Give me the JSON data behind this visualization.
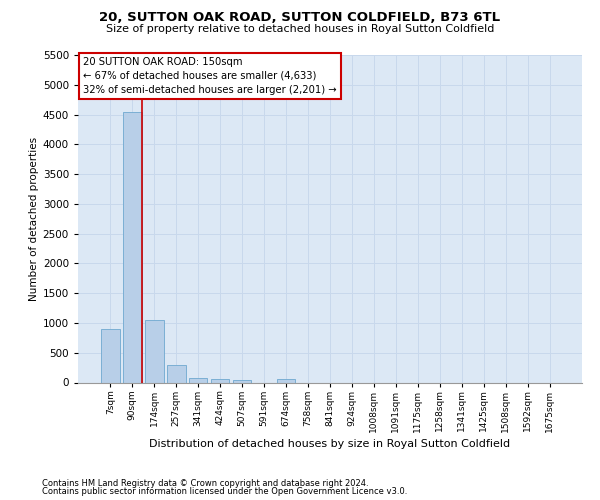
{
  "title": "20, SUTTON OAK ROAD, SUTTON COLDFIELD, B73 6TL",
  "subtitle": "Size of property relative to detached houses in Royal Sutton Coldfield",
  "xlabel": "Distribution of detached houses by size in Royal Sutton Coldfield",
  "ylabel": "Number of detached properties",
  "footnote1": "Contains HM Land Registry data © Crown copyright and database right 2024.",
  "footnote2": "Contains public sector information licensed under the Open Government Licence v3.0.",
  "bar_color": "#b8cfe8",
  "bar_edge_color": "#6fa8d0",
  "grid_color": "#c8d8ec",
  "background_color": "#dce8f5",
  "annotation_line1": "20 SUTTON OAK ROAD: 150sqm",
  "annotation_line2": "← 67% of detached houses are smaller (4,633)",
  "annotation_line3": "32% of semi-detached houses are larger (2,201) →",
  "vline_color": "#cc0000",
  "annotation_box_edgecolor": "#cc0000",
  "categories": [
    "7sqm",
    "90sqm",
    "174sqm",
    "257sqm",
    "341sqm",
    "424sqm",
    "507sqm",
    "591sqm",
    "674sqm",
    "758sqm",
    "841sqm",
    "924sqm",
    "1008sqm",
    "1091sqm",
    "1175sqm",
    "1258sqm",
    "1341sqm",
    "1425sqm",
    "1508sqm",
    "1592sqm",
    "1675sqm"
  ],
  "values": [
    900,
    4550,
    1050,
    300,
    80,
    65,
    50,
    0,
    60,
    0,
    0,
    0,
    0,
    0,
    0,
    0,
    0,
    0,
    0,
    0,
    0
  ],
  "ylim_max": 5500,
  "yticks": [
    0,
    500,
    1000,
    1500,
    2000,
    2500,
    3000,
    3500,
    4000,
    4500,
    5000,
    5500
  ],
  "vline_idx": 1.43
}
